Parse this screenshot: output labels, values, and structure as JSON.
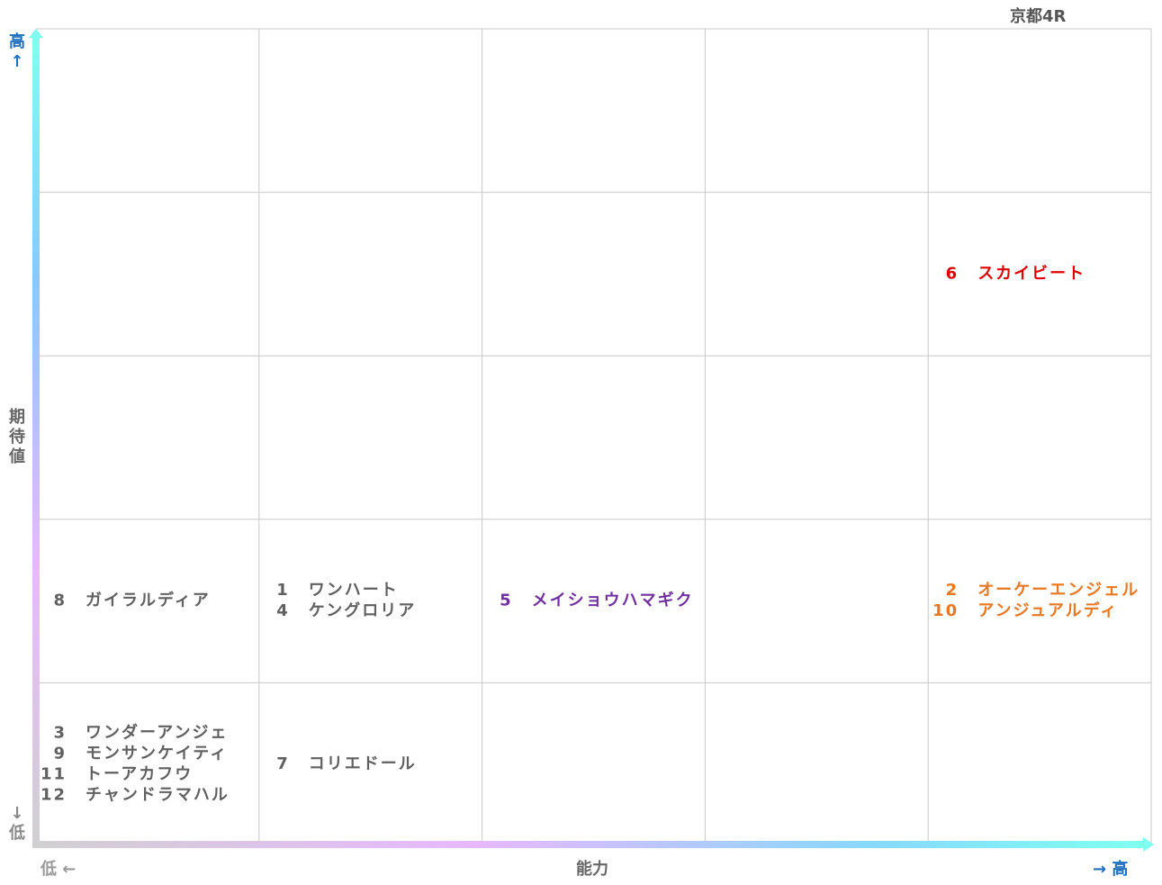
{
  "title": "京都4R",
  "y_axis": {
    "label": "期待値",
    "high": "高↑",
    "low": "↓低"
  },
  "x_axis": {
    "label": "能力",
    "low": "低 ←",
    "high": "→ 高"
  },
  "grid": [
    [
      [],
      [],
      [],
      [],
      []
    ],
    [
      [],
      [],
      [],
      [],
      [
        {
          "number": 6,
          "name": "スカイビート",
          "color": "#e00000"
        }
      ]
    ],
    [
      [],
      [],
      [],
      [],
      []
    ],
    [
      [
        {
          "number": 8,
          "name": "ガイラルディア",
          "color": "#606060"
        }
      ],
      [
        {
          "number": 1,
          "name": "ワンハート",
          "color": "#606060"
        },
        {
          "number": 4,
          "name": "ケングロリア",
          "color": "#606060"
        }
      ],
      [
        {
          "number": 5,
          "name": "メイショウハマギク",
          "color": "#7030a0"
        }
      ],
      [],
      [
        {
          "number": 2,
          "name": "オーケーエンジェル",
          "color": "#e87722"
        },
        {
          "number": 10,
          "name": "アンジュアルディ",
          "color": "#e87722"
        }
      ]
    ],
    [
      [
        {
          "number": 3,
          "name": "ワンダーアンジェ",
          "color": "#606060"
        },
        {
          "number": 9,
          "name": "モンサンケイティ",
          "color": "#606060"
        },
        {
          "number": 11,
          "name": "トーアカフウ",
          "color": "#606060"
        },
        {
          "number": 12,
          "name": "チャンドラマハル",
          "color": "#606060"
        }
      ],
      [
        {
          "number": 7,
          "name": "コリエドール",
          "color": "#606060"
        }
      ],
      [],
      [],
      []
    ]
  ]
}
